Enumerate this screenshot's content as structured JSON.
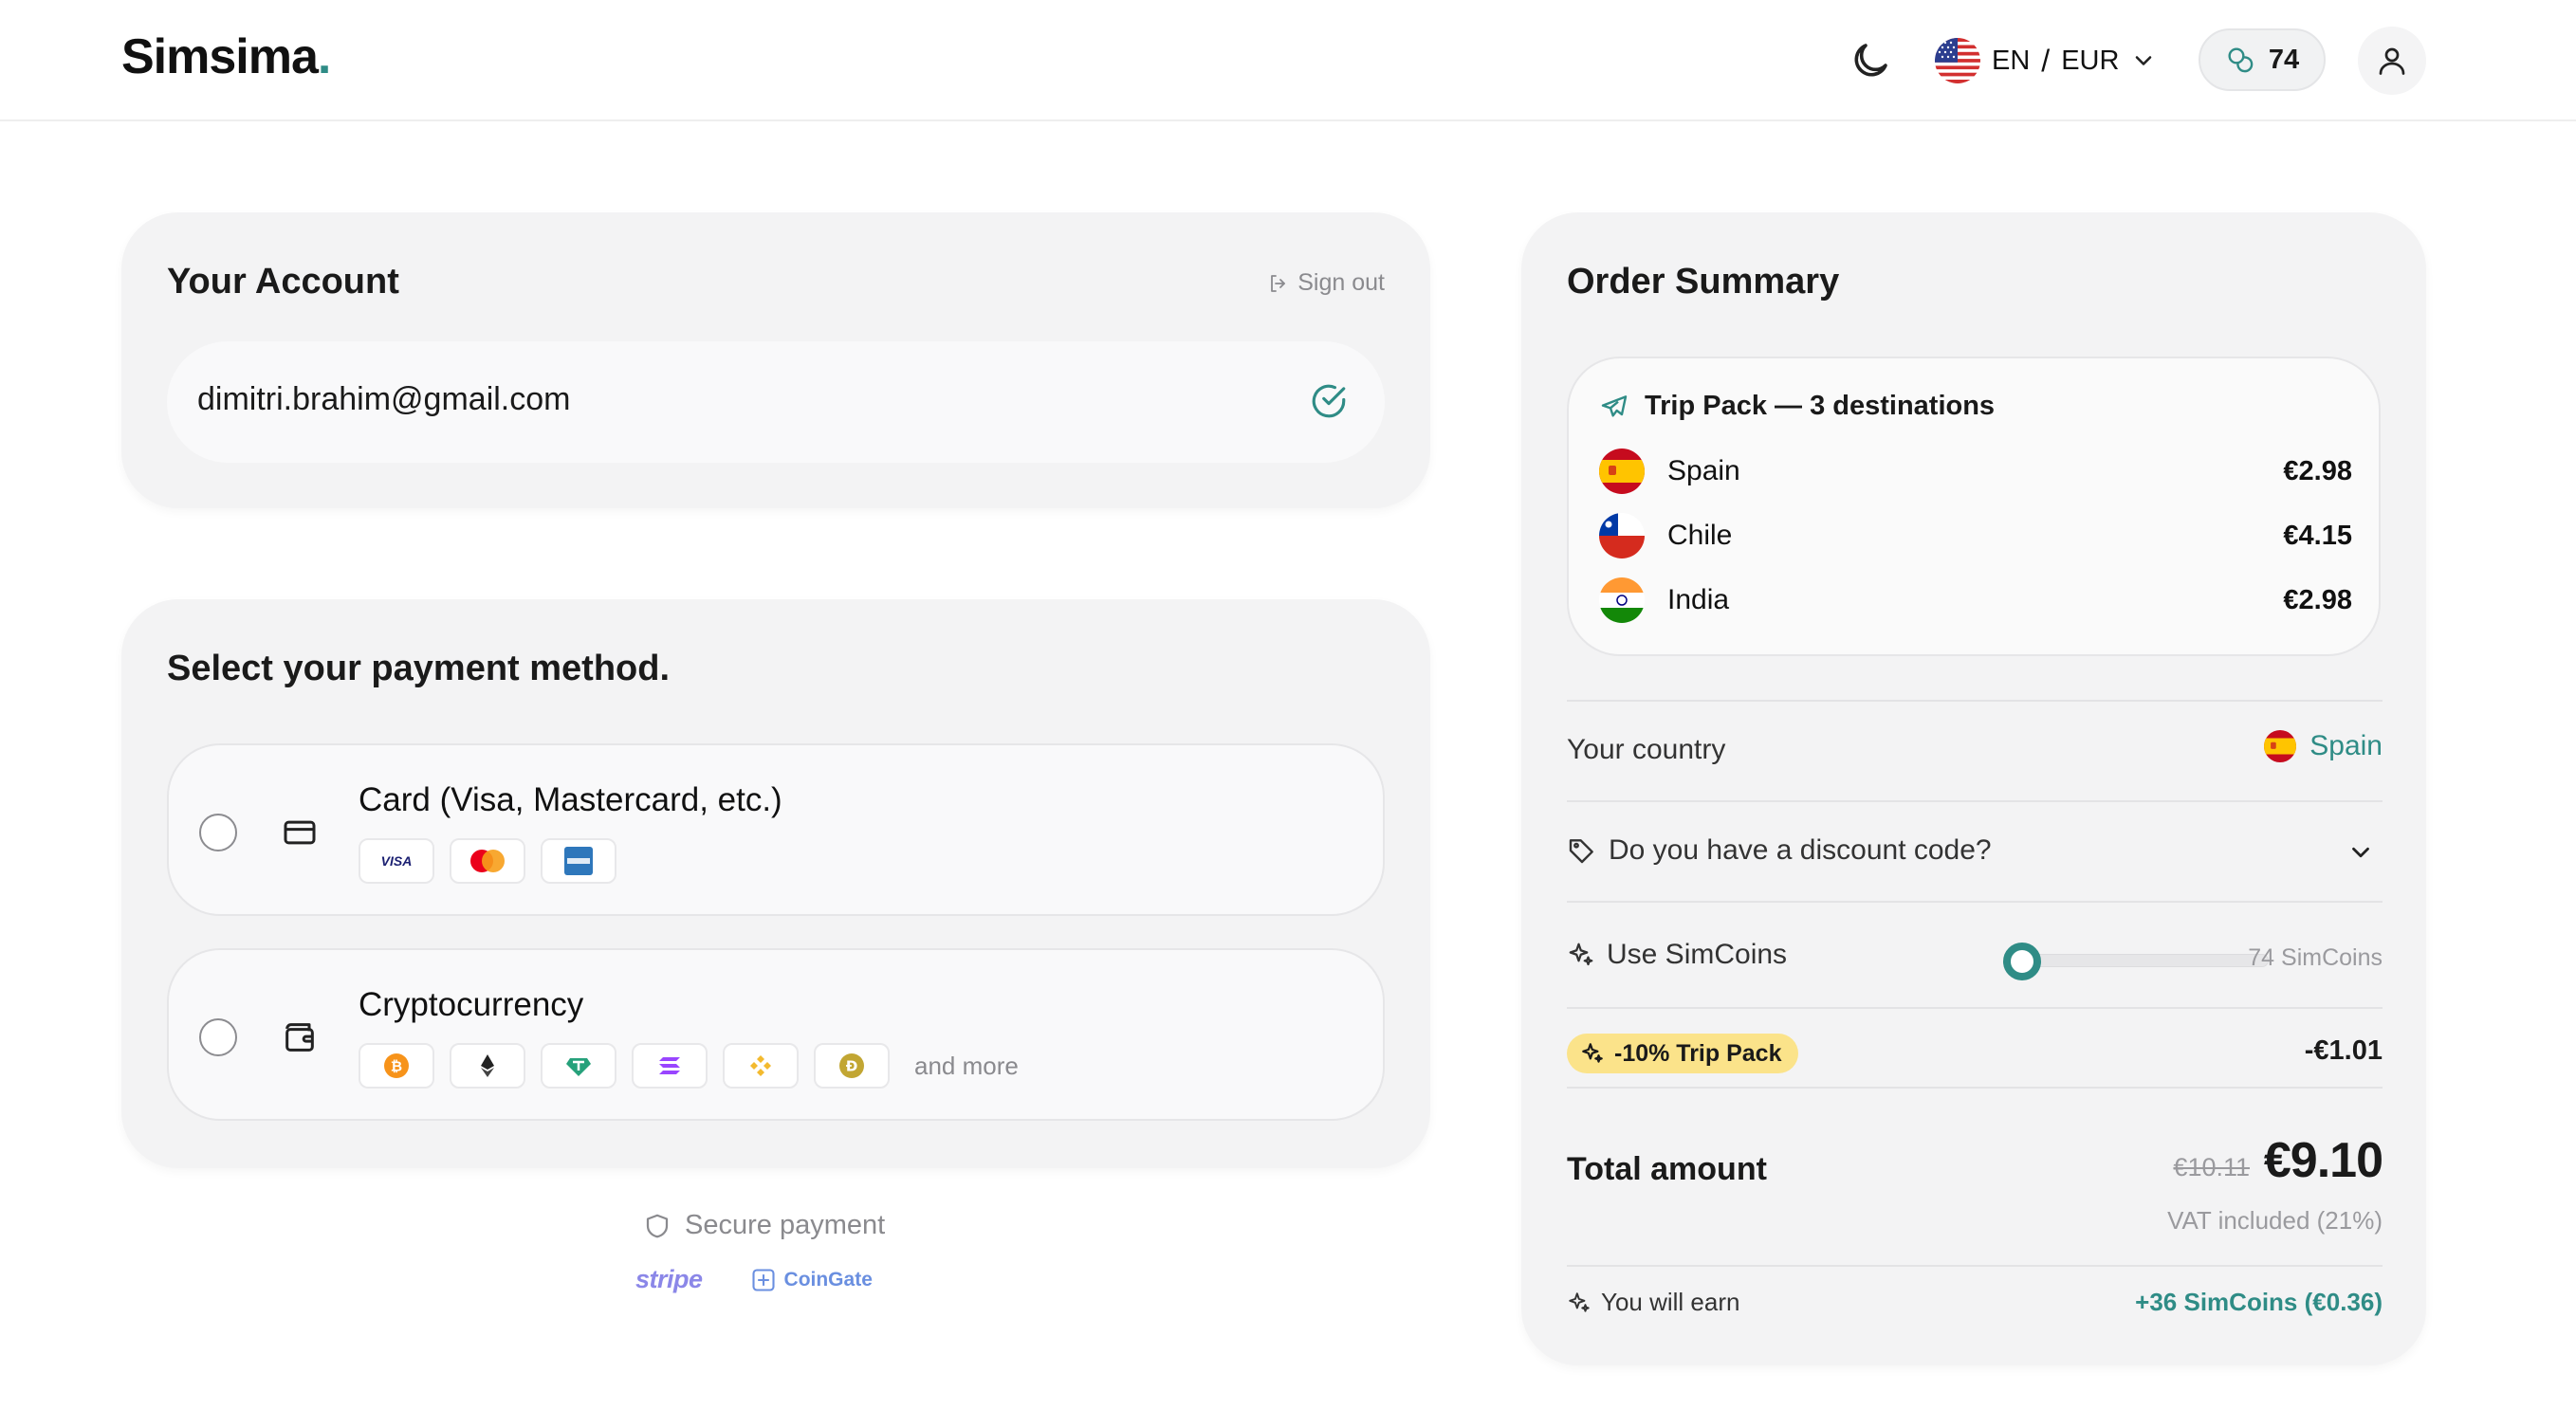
{
  "header": {
    "logo": "Simsima",
    "logo_dot": ".",
    "lang": "EN",
    "separator": "/",
    "currency": "EUR",
    "coins": "74"
  },
  "account": {
    "title": "Your Account",
    "sign_out": "Sign out",
    "email": "dimitri.brahim@gmail.com"
  },
  "payment": {
    "title": "Select your payment method.",
    "card_label": "Card (Visa, Mastercard, etc.)",
    "card_brands": [
      "visa-icon",
      "mastercard-icon",
      "amex-icon"
    ],
    "crypto_label": "Cryptocurrency",
    "crypto_coins": [
      "bitcoin-icon",
      "ethereum-icon",
      "usdt-icon",
      "solana-icon",
      "bnb-icon",
      "dogecoin-icon"
    ],
    "crypto_more": "and more",
    "secure": "Secure payment",
    "stripe": "stripe",
    "coingate": "CoinGate"
  },
  "order": {
    "title": "Order Summary",
    "trip_title": "Trip Pack — 3 destinations",
    "destinations": [
      {
        "name": "Spain",
        "price": "€2.98"
      },
      {
        "name": "Chile",
        "price": "€4.15"
      },
      {
        "name": "India",
        "price": "€2.98"
      }
    ],
    "country_label": "Your country",
    "country_value": "Spain",
    "discount_label": "Do you have a discount code?",
    "simcoins_label": "Use SimCoins",
    "simcoins_max": "74 SimCoins",
    "simcoins_slider_value": 0,
    "badge": "-10% Trip Pack",
    "badge_amount": "-€1.01",
    "total_label": "Total amount",
    "old_total": "€10.11",
    "total": "€9.10",
    "vat": "VAT included (21%)",
    "earn_label": "You will earn",
    "earn_value": "+36 SimCoins (€0.36)"
  },
  "colors": {
    "accent": "#2f8c86",
    "badge": "#fbe38a",
    "card_bg": "#f3f3f4"
  }
}
